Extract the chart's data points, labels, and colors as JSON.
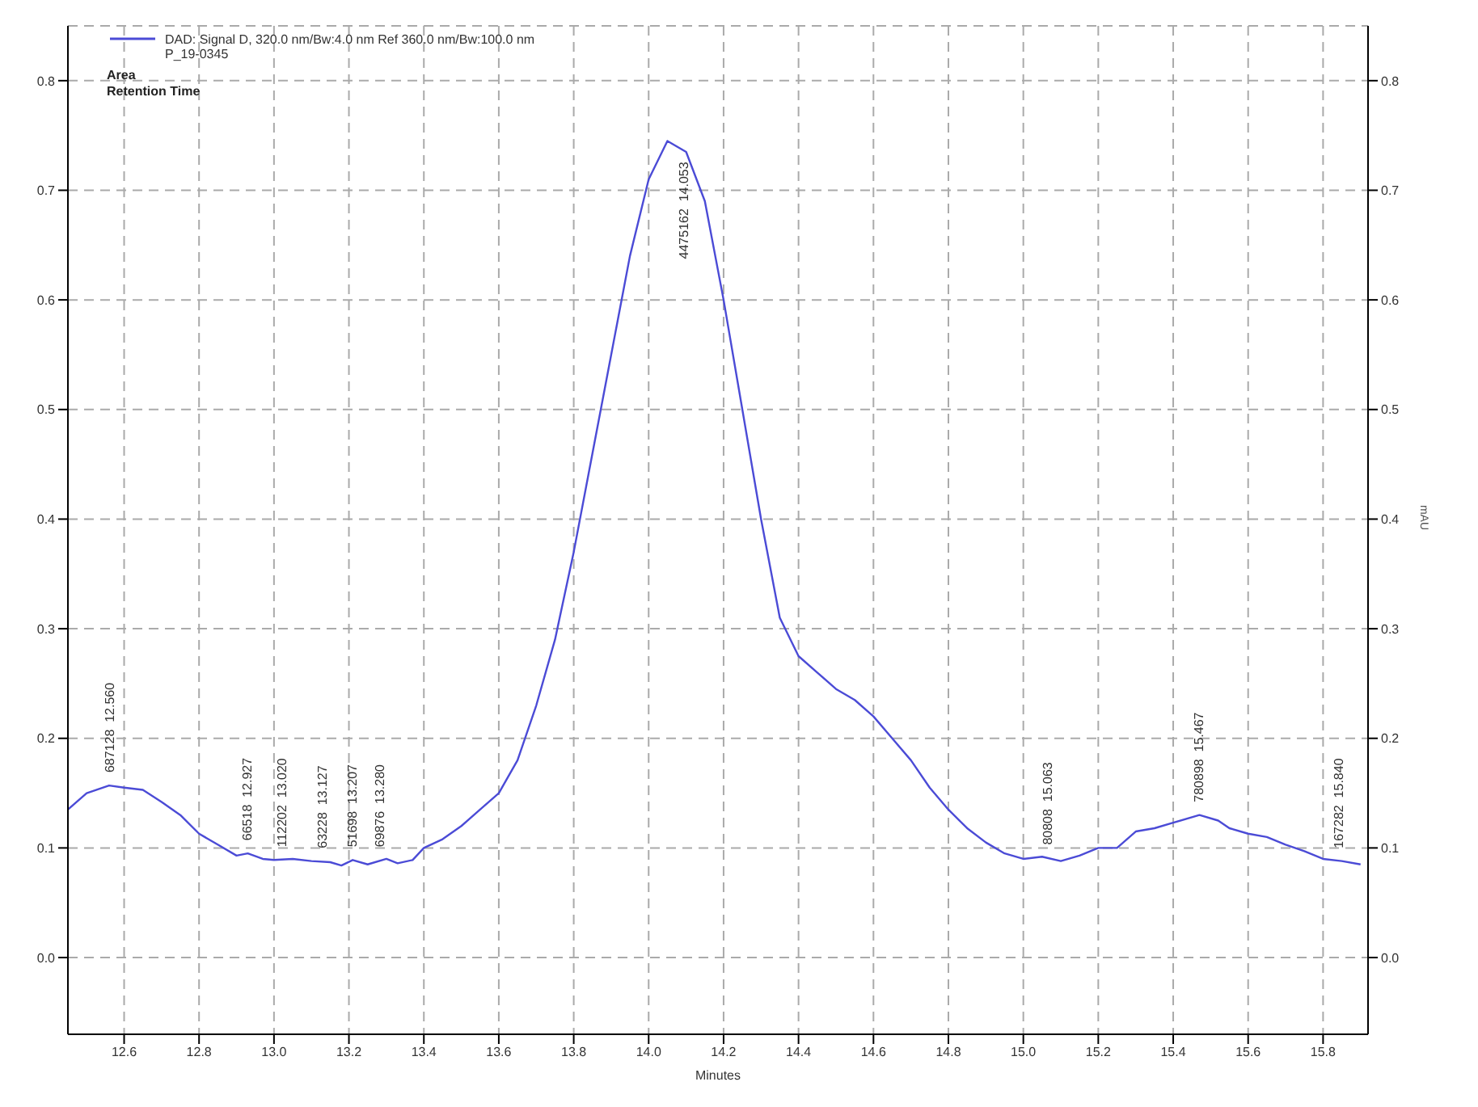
{
  "chart_data": {
    "type": "line",
    "xlabel": "Minutes",
    "y2label": "mAU",
    "x": [
      12.45,
      12.5,
      12.56,
      12.6,
      12.65,
      12.7,
      12.75,
      12.8,
      12.85,
      12.9,
      12.93,
      12.97,
      13.0,
      13.05,
      13.1,
      13.15,
      13.18,
      13.21,
      13.25,
      13.3,
      13.33,
      13.37,
      13.4,
      13.45,
      13.5,
      13.55,
      13.6,
      13.65,
      13.7,
      13.75,
      13.8,
      13.85,
      13.9,
      13.95,
      14.0,
      14.05,
      14.1,
      14.15,
      14.2,
      14.25,
      14.3,
      14.35,
      14.4,
      14.45,
      14.5,
      14.55,
      14.6,
      14.65,
      14.7,
      14.75,
      14.8,
      14.85,
      14.9,
      14.95,
      15.0,
      15.05,
      15.1,
      15.15,
      15.2,
      15.25,
      15.3,
      15.35,
      15.4,
      15.47,
      15.52,
      15.55,
      15.6,
      15.65,
      15.7,
      15.75,
      15.8,
      15.85,
      15.9
    ],
    "series": [
      {
        "name": "DAD: Signal D, 320.0 nm/Bw:4.0 nm Ref 360.0 nm/Bw:100.0 nm\nP_19-0345",
        "color": "#4b4bd6",
        "values": [
          0.135,
          0.15,
          0.157,
          0.155,
          0.153,
          0.142,
          0.13,
          0.113,
          0.103,
          0.093,
          0.095,
          0.09,
          0.089,
          0.09,
          0.088,
          0.087,
          0.084,
          0.089,
          0.085,
          0.09,
          0.086,
          0.089,
          0.1,
          0.108,
          0.12,
          0.135,
          0.15,
          0.18,
          0.23,
          0.29,
          0.37,
          0.46,
          0.55,
          0.64,
          0.71,
          0.745,
          0.735,
          0.69,
          0.6,
          0.5,
          0.4,
          0.31,
          0.275,
          0.26,
          0.245,
          0.235,
          0.22,
          0.2,
          0.18,
          0.155,
          0.135,
          0.118,
          0.105,
          0.095,
          0.09,
          0.092,
          0.088,
          0.093,
          0.1,
          0.1,
          0.115,
          0.118,
          0.123,
          0.13,
          0.125,
          0.118,
          0.113,
          0.11,
          0.103,
          0.097,
          0.09,
          0.088,
          0.085
        ]
      }
    ],
    "xlim": [
      12.45,
      15.92
    ],
    "xticks": [
      12.6,
      12.8,
      {
        "value": 13,
        "label": "13.0"
      },
      13.2,
      13.4,
      13.6,
      13.8,
      {
        "value": 14,
        "label": "14.0"
      },
      14.2,
      14.4,
      14.6,
      14.8,
      {
        "value": 15,
        "label": "15.0"
      },
      15.2,
      15.4,
      15.6,
      15.8
    ],
    "ylim": [
      -0.07,
      0.85
    ],
    "yticks": [
      {
        "value": 0,
        "label": "0.0"
      },
      0.1,
      0.2,
      0.3,
      0.4,
      0.5,
      0.6,
      0.7,
      0.8
    ],
    "y2lim": [
      -0.07,
      0.85
    ],
    "y2ticks": [
      {
        "value": 0,
        "label": "0.0"
      },
      0.1,
      0.2,
      0.3,
      0.4,
      0.5,
      0.6,
      0.7,
      0.8
    ],
    "grid": true,
    "line_style": "solid",
    "marker": "none",
    "legend": "top left",
    "annotations": [
      "Area",
      "Retention Time",
      {
        "text": "687128  12.560",
        "x": 12.56,
        "y": 0.157
      },
      {
        "text": "66518  12.927",
        "x": 12.927,
        "y": 0.095
      },
      {
        "text": "112202  13.020",
        "x": 13.02,
        "y": 0.089
      },
      {
        "text": "63228  13.127",
        "x": 13.127,
        "y": 0.088
      },
      {
        "text": "51698  13.207",
        "x": 13.207,
        "y": 0.089
      },
      {
        "text": "69876  13.280",
        "x": 13.28,
        "y": 0.089
      },
      {
        "text": "4475162  14.053",
        "x": 14.053,
        "y": 0.745
      },
      {
        "text": "80808  15.063",
        "x": 15.063,
        "y": 0.091
      },
      {
        "text": "780898  15.467",
        "x": 15.467,
        "y": 0.13
      },
      {
        "text": "167282  15.840",
        "x": 15.84,
        "y": 0.088
      }
    ]
  }
}
